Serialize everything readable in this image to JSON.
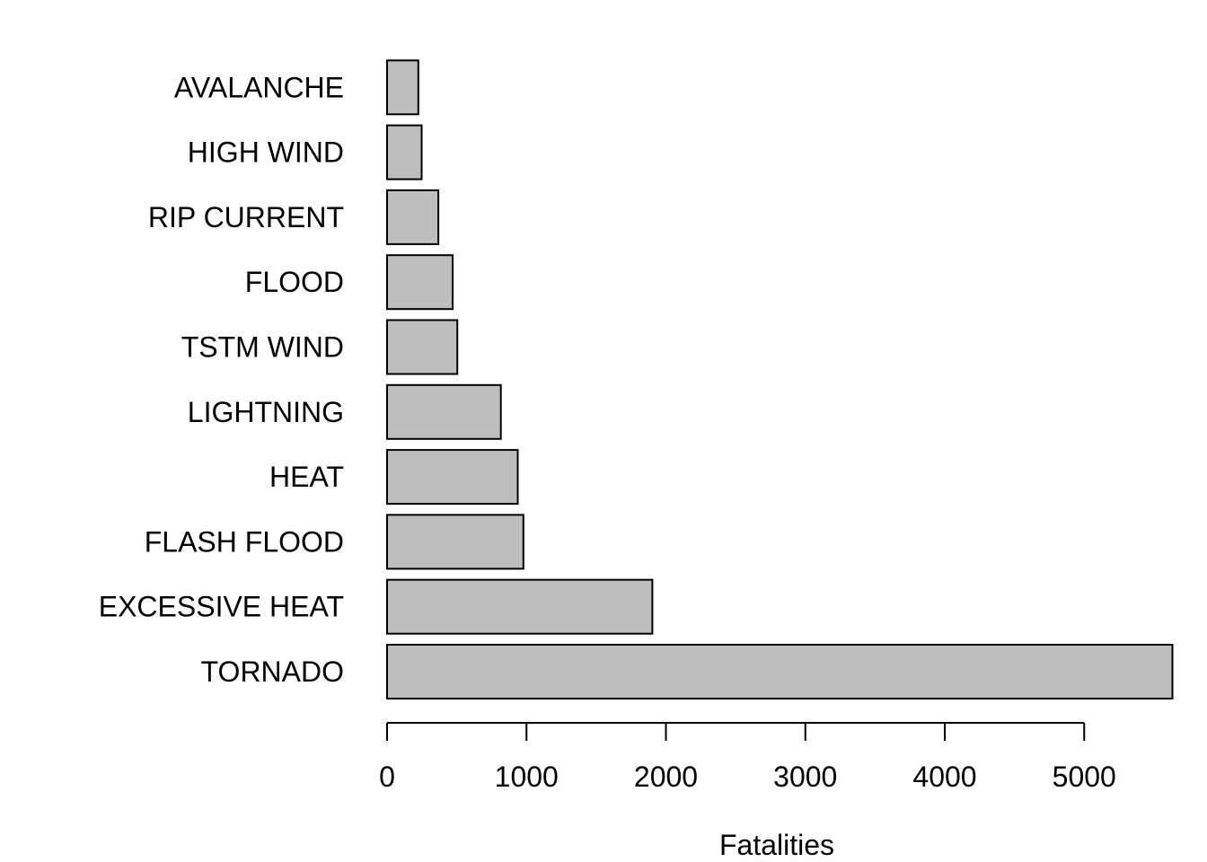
{
  "chart_data": {
    "type": "bar",
    "orientation": "horizontal",
    "title": "",
    "xlabel": "Fatalities",
    "ylabel": "",
    "categories": [
      "TORNADO",
      "EXCESSIVE HEAT",
      "FLASH FLOOD",
      "HEAT",
      "LIGHTNING",
      "TSTM WIND",
      "FLOOD",
      "RIP CURRENT",
      "HIGH WIND",
      "AVALANCHE"
    ],
    "values": [
      5633,
      1903,
      978,
      937,
      816,
      504,
      470,
      368,
      248,
      224
    ],
    "xticks": [
      0,
      1000,
      2000,
      3000,
      4000,
      5000
    ],
    "xticklabels": [
      "0",
      "1000",
      "2000",
      "3000",
      "4000",
      "5000"
    ],
    "xlim": [
      0,
      5633
    ],
    "grid": false,
    "legend": "none",
    "colors": {
      "bar_fill": "#bebebe",
      "bar_stroke": "#000000",
      "axis": "#000000",
      "background": "#ffffff"
    }
  }
}
